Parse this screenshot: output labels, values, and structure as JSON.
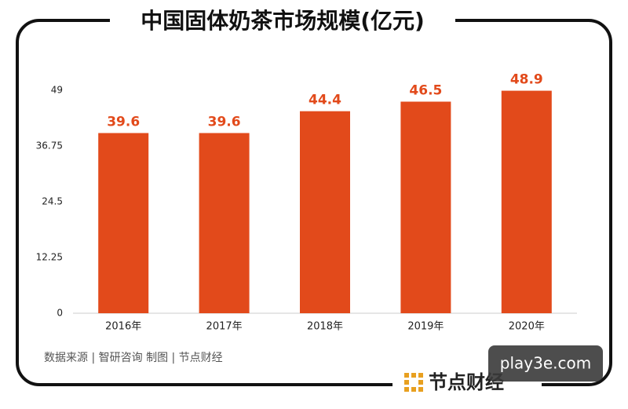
{
  "chart_data": {
    "type": "bar",
    "title": "中国固体奶茶市场规模(亿元)",
    "categories": [
      "2016年",
      "2017年",
      "2018年",
      "2019年",
      "2020年"
    ],
    "values": [
      39.6,
      39.6,
      44.4,
      46.5,
      48.9
    ],
    "color": "#e24a1b",
    "ylim": [
      0,
      49
    ],
    "yticks": [
      0,
      12.25,
      24.5,
      36.75,
      49
    ],
    "source": "数据来源 | 智研咨询   制图 | 节点财经",
    "logo": "节点财经",
    "watermark": "play3e.com"
  }
}
